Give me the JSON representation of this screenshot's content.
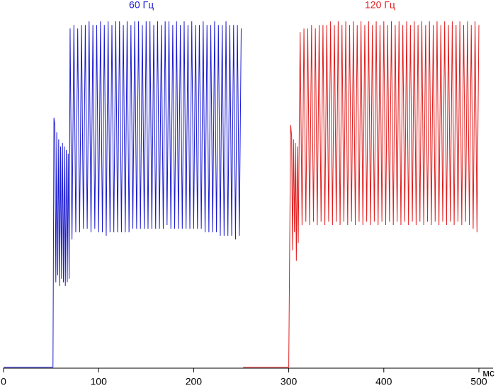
{
  "chart_data": {
    "type": "line",
    "x_label": "мс",
    "xlim": [
      0,
      500
    ],
    "xticks": [
      0,
      100,
      200,
      300,
      400,
      500
    ],
    "ylim": [
      0,
      100
    ],
    "series": [
      {
        "name": "60 Гц",
        "color": "#1c1cd0",
        "x": [
          0,
          52,
          53,
          54,
          55,
          56,
          57,
          58,
          59,
          60,
          61,
          62,
          63,
          64,
          65,
          66,
          67,
          68,
          69,
          70,
          72,
          74,
          76,
          78,
          80,
          82,
          84,
          86,
          88,
          90,
          92,
          94,
          96,
          98,
          100,
          102,
          104,
          106,
          108,
          110,
          112,
          114,
          116,
          118,
          120,
          122,
          124,
          126,
          128,
          130,
          132,
          134,
          136,
          138,
          140,
          142,
          144,
          146,
          148,
          150,
          152,
          154,
          156,
          158,
          160,
          162,
          164,
          166,
          168,
          170,
          172,
          174,
          176,
          178,
          180,
          182,
          184,
          186,
          188,
          190,
          192,
          194,
          196,
          198,
          200,
          202,
          204,
          206,
          208,
          210,
          212,
          214,
          216,
          218,
          220,
          222,
          224,
          226,
          228,
          230,
          232,
          234,
          236,
          238,
          240,
          242,
          244,
          246,
          248,
          250
        ],
        "values": [
          0.3,
          0.3,
          70,
          68,
          24,
          66,
          26,
          64,
          23,
          62,
          25,
          63,
          24,
          62,
          23,
          61,
          24,
          60,
          25,
          95,
          36,
          96,
          38,
          95,
          38,
          96,
          39,
          96,
          39,
          97,
          38,
          96,
          39,
          96,
          38,
          97,
          38,
          96,
          37,
          97,
          38,
          96,
          38,
          97,
          38,
          97,
          38,
          96,
          38,
          97,
          38,
          96,
          39,
          97,
          39,
          97,
          39,
          96,
          39,
          97,
          39,
          97,
          39,
          96,
          39,
          97,
          39,
          96,
          39,
          97,
          40,
          97,
          39,
          96,
          39,
          97,
          39,
          96,
          39,
          97,
          39,
          96,
          39,
          97,
          39,
          96,
          39,
          96,
          39,
          97,
          38,
          96,
          38,
          96,
          38,
          97,
          38,
          96,
          37,
          96,
          37,
          97,
          37,
          96,
          37,
          96,
          36,
          96,
          37,
          95
        ]
      },
      {
        "name": "120 Гц",
        "color": "#e01e1e",
        "x": [
          252,
          300,
          302,
          303,
          304,
          305,
          306,
          307,
          308,
          309,
          310,
          312,
          314,
          316,
          318,
          320,
          322,
          324,
          326,
          328,
          330,
          332,
          334,
          336,
          338,
          340,
          342,
          344,
          346,
          348,
          350,
          352,
          354,
          356,
          358,
          360,
          362,
          364,
          366,
          368,
          370,
          372,
          374,
          376,
          378,
          380,
          382,
          384,
          386,
          388,
          390,
          392,
          394,
          396,
          398,
          400,
          402,
          404,
          406,
          408,
          410,
          412,
          414,
          416,
          418,
          420,
          422,
          424,
          426,
          428,
          430,
          432,
          434,
          436,
          438,
          440,
          442,
          444,
          446,
          448,
          450,
          452,
          454,
          456,
          458,
          460,
          462,
          464,
          466,
          468,
          470,
          472,
          474,
          476,
          478,
          480,
          482,
          484,
          486,
          488,
          490,
          492,
          494,
          496,
          498,
          500
        ],
        "values": [
          0.3,
          0.3,
          68,
          65,
          33,
          64,
          38,
          63,
          30,
          62,
          35,
          94,
          40,
          95,
          41,
          95,
          40,
          96,
          41,
          95,
          40,
          96,
          41,
          96,
          40,
          96,
          41,
          97,
          40,
          96,
          41,
          97,
          40,
          96,
          41,
          97,
          40,
          96,
          41,
          97,
          40,
          96,
          41,
          97,
          40,
          96,
          41,
          97,
          40,
          96,
          41,
          97,
          40,
          96,
          41,
          97,
          40,
          96,
          41,
          97,
          40,
          96,
          41,
          97,
          40,
          96,
          41,
          97,
          40,
          96,
          41,
          97,
          40,
          96,
          41,
          97,
          40,
          96,
          41,
          97,
          40,
          96,
          41,
          97,
          40,
          96,
          41,
          97,
          40,
          96,
          41,
          97,
          40,
          96,
          41,
          97,
          40,
          96,
          41,
          97,
          40,
          96,
          39,
          97,
          38,
          96
        ]
      }
    ]
  }
}
